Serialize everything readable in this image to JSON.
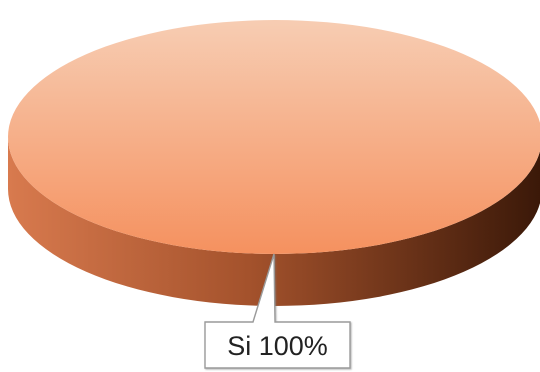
{
  "chart_data": {
    "type": "pie",
    "title": "",
    "categories": [
      "Si"
    ],
    "values": [
      100
    ],
    "unit": "%",
    "data_labels": [
      "Si 100%"
    ],
    "style": "3d",
    "legend": "none",
    "colors": {
      "top_light": "#f7cdb3",
      "top_dark": "#f5915f",
      "side_light": "#d87a4e",
      "side_dark": "#3a1808",
      "label_border": "#9a9a9a"
    }
  }
}
